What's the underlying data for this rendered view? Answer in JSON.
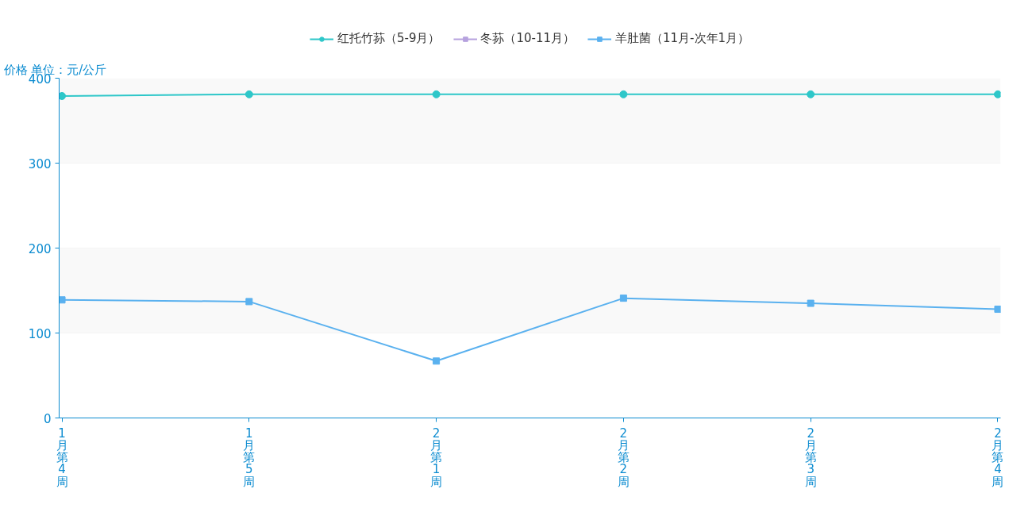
{
  "chart_data": {
    "type": "line",
    "ylabel": "价格 单位：元/公斤",
    "categories": [
      "1月第4周",
      "1月第5周",
      "2月第1周",
      "2月第2周",
      "2月第3周",
      "2月第4周"
    ],
    "series": [
      {
        "name": "红托竹荪（5-9月）",
        "color": "#2ec7c9",
        "marker": "circle",
        "values": [
          379,
          381,
          381,
          381,
          381,
          381
        ]
      },
      {
        "name": "冬荪（10-11月）",
        "color": "#b6a2de",
        "marker": "square",
        "values": [
          null,
          null,
          null,
          null,
          null,
          null
        ]
      },
      {
        "name": "羊肚菌（11月-次年1月）",
        "color": "#5ab1ef",
        "marker": "square",
        "values": [
          139,
          137,
          67,
          141,
          135,
          128
        ]
      }
    ],
    "ylim": [
      0,
      400
    ],
    "yticks": [
      0,
      100,
      200,
      300,
      400
    ],
    "grid": "y",
    "bands": [
      {
        "axis": "y",
        "from": 100,
        "to": 200,
        "color": "#f9f9f9"
      },
      {
        "axis": "y",
        "from": 300,
        "to": 400,
        "color": "#f9f9f9"
      }
    ],
    "legend": "top",
    "line_style": "solid"
  }
}
